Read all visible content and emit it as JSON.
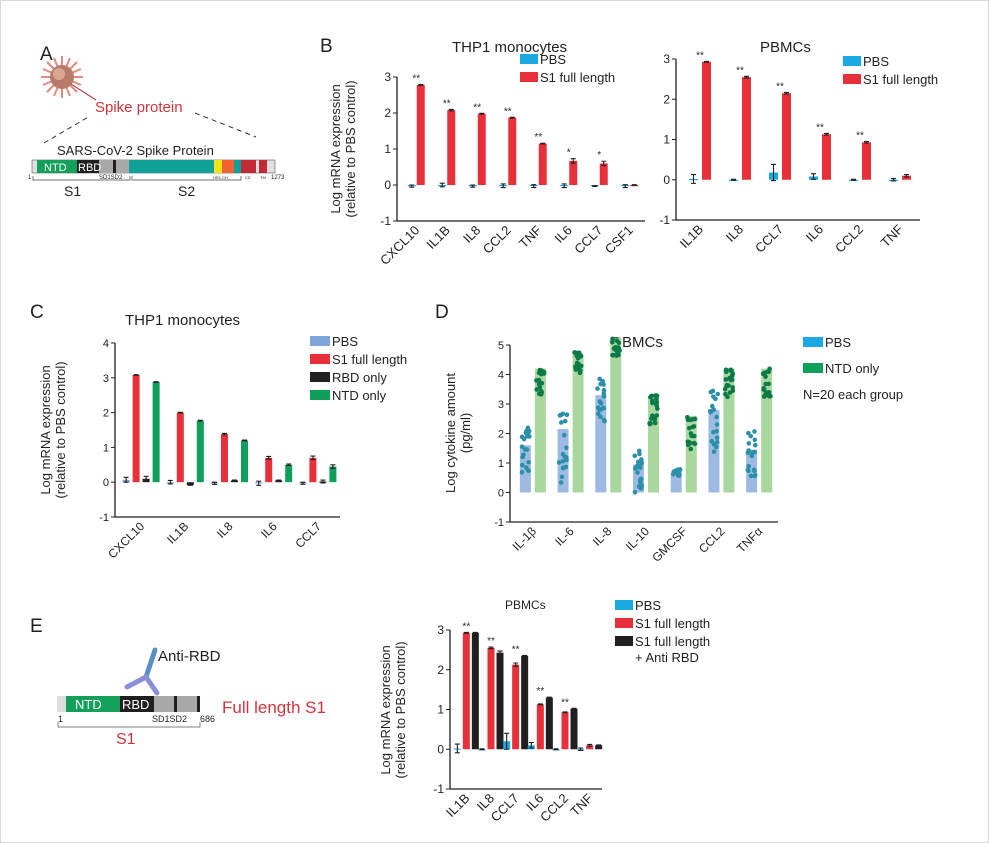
{
  "panels": {
    "a": "A",
    "b": "B",
    "c": "C",
    "d": "D",
    "e": "E"
  },
  "diagram_a": {
    "virus_label": "Spike protein",
    "protein_title": "SARS-CoV-2 Spike Protein",
    "domains": {
      "ntd": "NTD",
      "rbd": "RBD",
      "sd": "SD1SD2",
      "hr": "HR1 CH",
      "cd": "CD",
      "tm": "TM"
    },
    "start": "1",
    "end": "1273",
    "s1": "S1",
    "s2": "S2"
  },
  "diagram_e": {
    "antibody_label": "Anti-RBD",
    "construct_label": "Full length S1",
    "domains": {
      "ntd": "NTD",
      "rbd": "RBD",
      "sd": "SD1SD2"
    },
    "start": "1",
    "end": "686",
    "s1": "S1"
  },
  "colors": {
    "pbs": "#1ba9e1",
    "pbs_muted": "#7ea6d6",
    "s1": "#e8303a",
    "rbd": "#231f20",
    "ntd": "#0ea05a",
    "ntd_light": "#a9d89e",
    "ntd_dots": "#0b7a48",
    "pbs_dots": "#2a90aa",
    "label_red": "#d0343f"
  },
  "chart_data": [
    {
      "id": "b1",
      "type": "bar",
      "title": "THP1 monocytes",
      "ylabel": [
        "Log mRNA expression",
        "(relative to PBS control)"
      ],
      "ylim": [
        -1,
        3
      ],
      "yticks": [
        -1,
        0,
        1,
        2,
        3
      ],
      "grid": false,
      "legend": "top-right",
      "categories": [
        "CXCL10",
        "IL1B",
        "IL8",
        "CCL2",
        "TNF",
        "IL6",
        "CCL7",
        "CSF1"
      ],
      "series": [
        {
          "name": "PBS",
          "color": "#1ba9e1",
          "values": [
            -0.03,
            0.0,
            -0.03,
            -0.02,
            -0.03,
            -0.02,
            -0.03,
            -0.03
          ],
          "err": [
            0.03,
            0.05,
            0.03,
            0.05,
            0.04,
            0.05,
            0.01,
            0.04
          ]
        },
        {
          "name": "S1 full length",
          "color": "#e8303a",
          "values": [
            2.78,
            2.08,
            1.98,
            1.87,
            1.15,
            0.67,
            0.6,
            0.0
          ],
          "err": [
            0.01,
            0.02,
            0.01,
            0.01,
            0.01,
            0.06,
            0.06,
            0.01
          ]
        }
      ],
      "annotations": [
        "**",
        "**",
        "**",
        "**",
        "**",
        "*",
        "*",
        ""
      ]
    },
    {
      "id": "b2",
      "type": "bar",
      "title": "PBMCs",
      "ylim": [
        -1,
        3
      ],
      "yticks": [
        -1,
        0,
        1,
        2,
        3
      ],
      "grid": false,
      "legend": "top-right",
      "categories": [
        "IL1B",
        "IL8",
        "CCL7",
        "IL6",
        "CCL2",
        "TNF"
      ],
      "series": [
        {
          "name": "PBS",
          "color": "#1ba9e1",
          "values": [
            0.02,
            0.0,
            0.18,
            0.08,
            0.0,
            0.0
          ],
          "err": [
            0.11,
            0.01,
            0.2,
            0.07,
            0.01,
            0.03
          ]
        },
        {
          "name": "S1 full length",
          "color": "#e8303a",
          "values": [
            2.93,
            2.55,
            2.15,
            1.13,
            0.93,
            0.1
          ],
          "err": [
            0.01,
            0.02,
            0.02,
            0.02,
            0.02,
            0.03
          ]
        }
      ],
      "annotations": [
        "**",
        "**",
        "**",
        "**",
        "**",
        ""
      ]
    },
    {
      "id": "c",
      "type": "bar",
      "title": "THP1 monocytes",
      "ylabel": [
        "Log mRNA expression",
        "(relative to PBS control)"
      ],
      "ylim": [
        -1,
        4
      ],
      "yticks": [
        -1,
        0,
        1,
        2,
        3,
        4
      ],
      "grid": false,
      "legend": "top-right",
      "categories": [
        "CXCL10",
        "IL1B",
        "IL8",
        "IL6",
        "CCL7"
      ],
      "series": [
        {
          "name": "PBS",
          "color": "#7ea6d6",
          "values": [
            0.07,
            0.0,
            -0.03,
            -0.03,
            -0.03
          ],
          "err": [
            0.07,
            0.05,
            0.03,
            0.06,
            0.03
          ]
        },
        {
          "name": "S1 full length",
          "color": "#e8303a",
          "values": [
            3.08,
            2.0,
            1.38,
            0.7,
            0.7
          ],
          "err": [
            0.01,
            0.01,
            0.02,
            0.04,
            0.05
          ]
        },
        {
          "name": "RBD only",
          "color": "#231f20",
          "values": [
            0.1,
            -0.08,
            0.05,
            0.05,
            0.02
          ],
          "err": [
            0.07,
            0.01,
            0.01,
            0.01,
            0.04
          ]
        },
        {
          "name": "NTD only",
          "color": "#0ea05a",
          "values": [
            2.88,
            1.77,
            1.2,
            0.5,
            0.45
          ],
          "err": [
            0.01,
            0.01,
            0.01,
            0.02,
            0.05
          ]
        }
      ],
      "annotations": [
        "",
        "",
        "",
        "",
        ""
      ]
    },
    {
      "id": "d",
      "type": "bar",
      "title": "PBMCs",
      "ylabel": [
        "Log cytokine amount",
        "(pg/ml)"
      ],
      "ylim": [
        -1,
        5
      ],
      "yticks": [
        -1,
        0,
        1,
        2,
        3,
        4,
        5
      ],
      "grid": false,
      "legend": "top-right",
      "note": "N=20 each group",
      "categories": [
        "IL-1β",
        "IL-6",
        "IL-8",
        "IL-10",
        "GMCSF",
        "CCL2",
        "TNFα"
      ],
      "series": [
        {
          "name": "PBS",
          "color": "#9dbbe2",
          "legend_color": "#1ba9e1",
          "dot_color": "#2a90aa",
          "values": [
            1.6,
            2.15,
            3.3,
            0.95,
            0.65,
            2.8,
            1.45
          ],
          "point_range": [
            [
              0.6,
              2.2
            ],
            [
              0.2,
              2.8
            ],
            [
              2.4,
              3.9
            ],
            [
              0.0,
              1.5
            ],
            [
              0.55,
              0.8
            ],
            [
              1.2,
              3.45
            ],
            [
              0.55,
              2.1
            ]
          ]
        },
        {
          "name": "NTD only",
          "color": "#a9d89e",
          "legend_color": "#0ea05a",
          "dot_color": "#0b7a48",
          "values": [
            4.2,
            4.7,
            5.25,
            3.25,
            2.6,
            4.2,
            4.2
          ],
          "point_range": [
            [
              3.2,
              4.2
            ],
            [
              4.05,
              4.75
            ],
            [
              4.5,
              5.3
            ],
            [
              2.25,
              3.3
            ],
            [
              1.3,
              2.6
            ],
            [
              3.2,
              4.2
            ],
            [
              3.25,
              4.2
            ]
          ]
        }
      ],
      "points_per_group": 20
    },
    {
      "id": "e",
      "type": "bar",
      "title": "PBMCs",
      "ylabel": [
        "Log mRNA expression",
        "(relative to PBS control)"
      ],
      "ylim": [
        -1,
        3
      ],
      "yticks": [
        -1,
        0,
        1,
        2,
        3
      ],
      "grid": false,
      "legend": "top-right",
      "categories": [
        "IL1B",
        "IL8",
        "CCL7",
        "IL6",
        "CCL2",
        "TNF"
      ],
      "series": [
        {
          "name": "PBS",
          "color": "#1ba9e1",
          "values": [
            0.02,
            0.0,
            0.2,
            0.1,
            0.0,
            0.0
          ],
          "err": [
            0.11,
            0.01,
            0.2,
            0.07,
            0.01,
            0.03
          ]
        },
        {
          "name": "S1 full length",
          "color": "#e8303a",
          "values": [
            2.93,
            2.55,
            2.13,
            1.13,
            0.93,
            0.1
          ],
          "err": [
            0.01,
            0.02,
            0.04,
            0.01,
            0.01,
            0.02
          ]
        },
        {
          "name": [
            "S1 full length",
            "+ Anti RBD"
          ],
          "color": "#231f20",
          "values": [
            2.93,
            2.43,
            2.35,
            1.3,
            1.02,
            0.1
          ],
          "err": [
            0.01,
            0.04,
            0.01,
            0.01,
            0.01,
            0.01
          ]
        }
      ],
      "annotations": [
        "**",
        "**",
        "**",
        "**",
        "**",
        ""
      ]
    }
  ]
}
